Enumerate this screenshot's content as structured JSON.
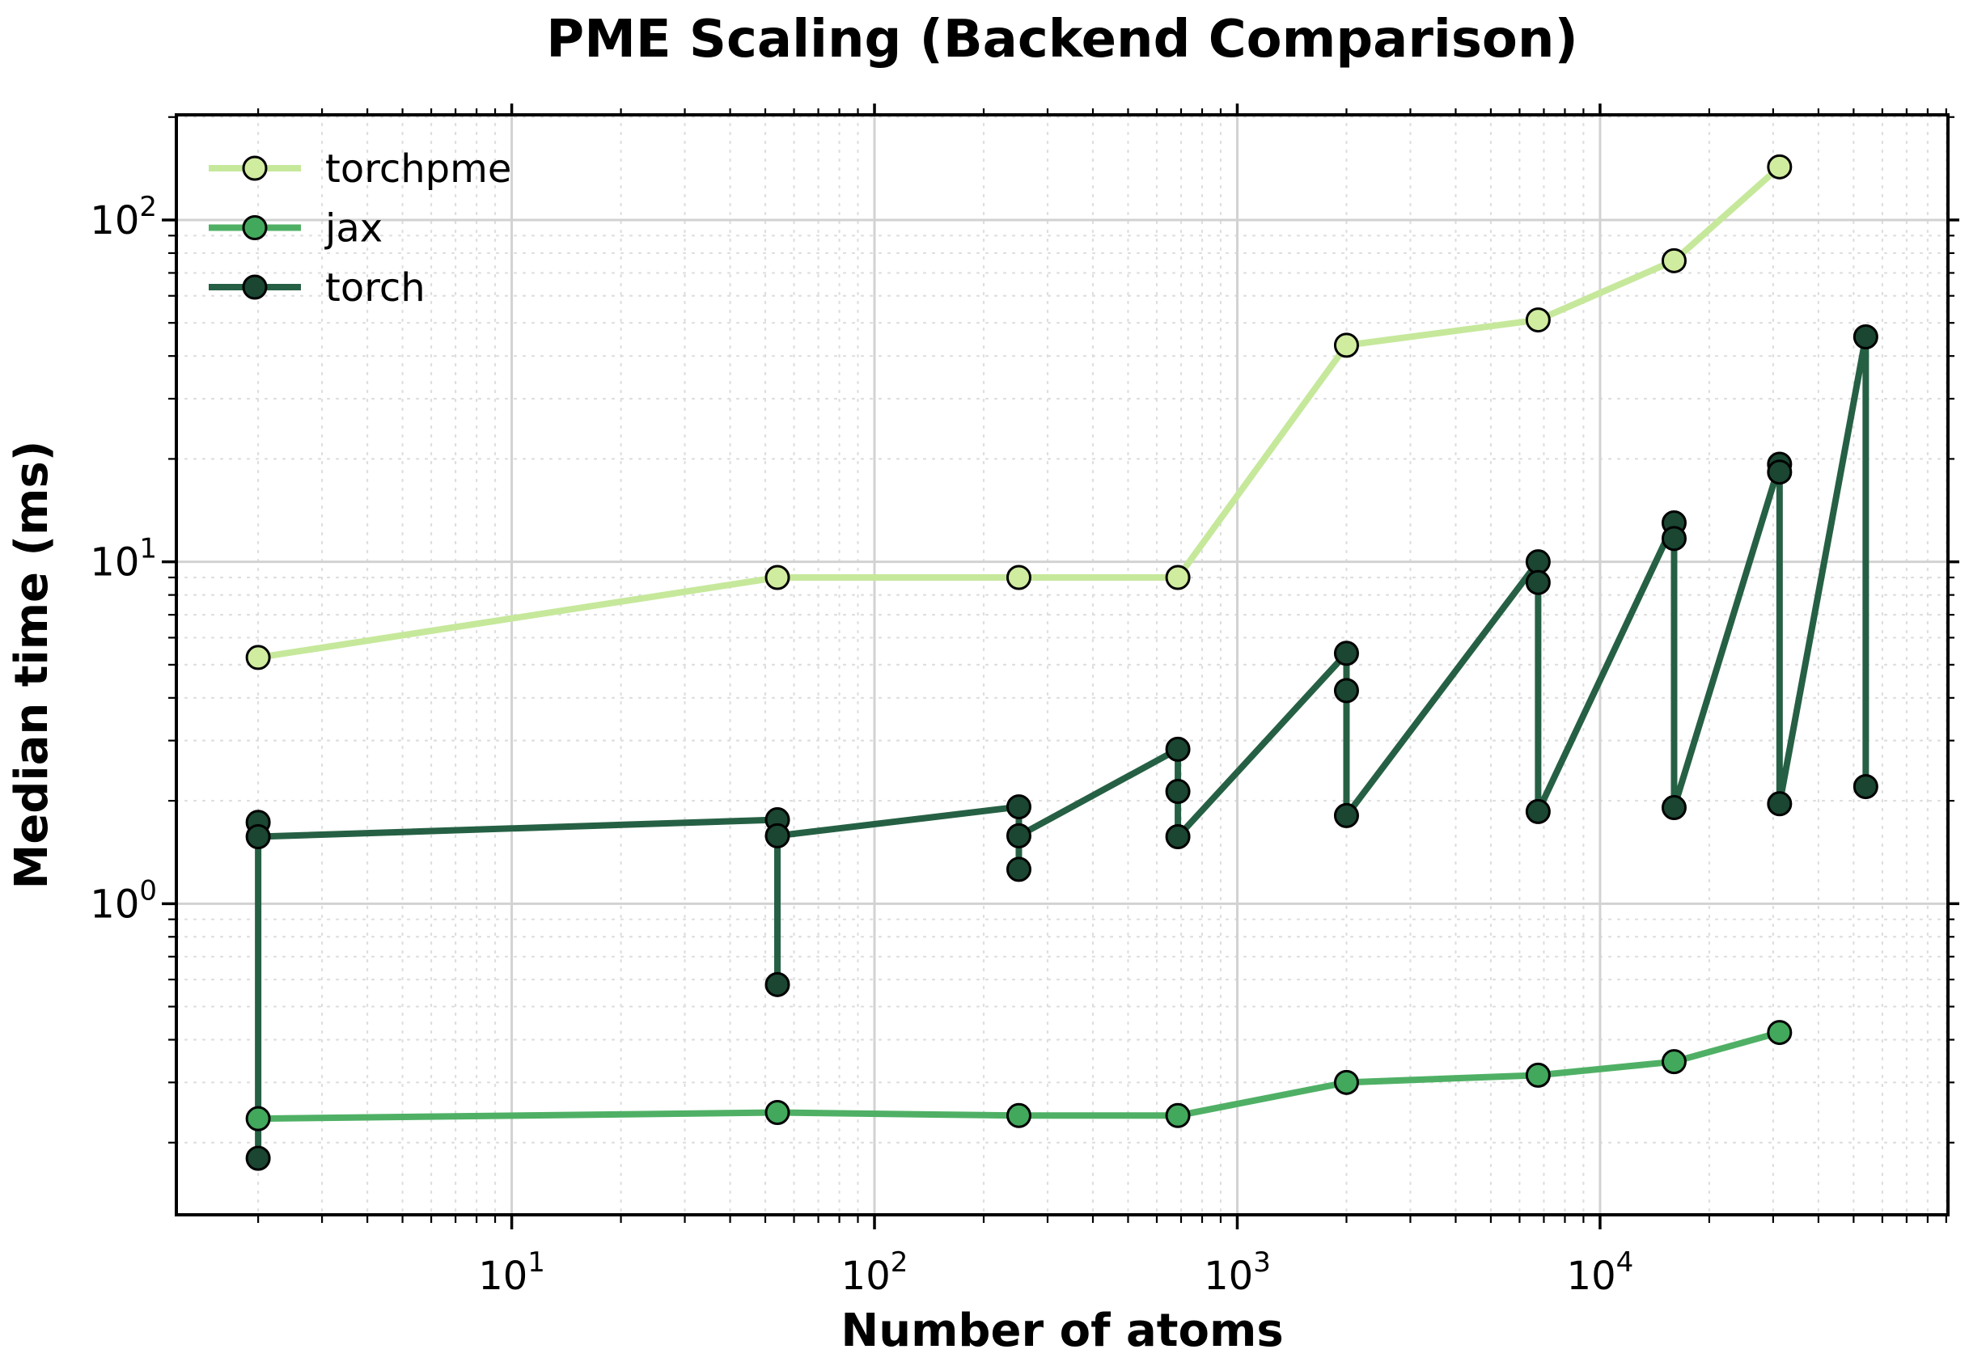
{
  "chart_data": {
    "type": "line",
    "title": "PME Scaling (Backend Comparison)",
    "xlabel": "Number of atoms",
    "ylabel": "Median time (ms)",
    "x_scale": "log",
    "y_scale": "log",
    "xlim": [
      1.19,
      91000
    ],
    "ylim": [
      0.123,
      203
    ],
    "x_major_ticks": [
      10,
      100,
      1000,
      10000
    ],
    "y_major_ticks": [
      1,
      10,
      100
    ],
    "grid": true,
    "legend_position": "upper left",
    "background_color": "#ffffff",
    "major_grid_color": "#d2d2d2",
    "minor_grid_color": "#dedede",
    "spine_color": "#000000",
    "series": [
      {
        "name": "torchpme",
        "color": "#c6e89b",
        "marker_face": "#d0ec9f",
        "marker_edge": "#000000",
        "points": [
          [
            2,
            5.25
          ],
          [
            54,
            9.0
          ],
          [
            250,
            9.0
          ],
          [
            686,
            9.0
          ],
          [
            2000,
            43
          ],
          [
            6750,
            51
          ],
          [
            16000,
            76
          ],
          [
            31250,
            143
          ]
        ]
      },
      {
        "name": "jax",
        "color": "#4fb065",
        "marker_face": "#42a85c",
        "marker_edge": "#000000",
        "points": [
          [
            2,
            0.235
          ],
          [
            54,
            0.245
          ],
          [
            250,
            0.24
          ],
          [
            686,
            0.24
          ],
          [
            2000,
            0.3
          ],
          [
            6750,
            0.315
          ],
          [
            16000,
            0.345
          ],
          [
            31250,
            0.42
          ]
        ]
      },
      {
        "name": "torch",
        "color": "#266044",
        "marker_face": "#1a4632",
        "marker_edge": "#000000",
        "points": [
          [
            2,
            1.73
          ],
          [
            2,
            0.18
          ],
          [
            2,
            1.57
          ],
          [
            54,
            1.76
          ],
          [
            54,
            0.58
          ],
          [
            54,
            1.58
          ],
          [
            250,
            1.92
          ],
          [
            250,
            1.26
          ],
          [
            250,
            1.58
          ],
          [
            686,
            2.83
          ],
          [
            686,
            2.13
          ],
          [
            686,
            1.57
          ],
          [
            2000,
            5.4
          ],
          [
            2000,
            4.2
          ],
          [
            2000,
            1.81
          ],
          [
            6750,
            10.0
          ],
          [
            6750,
            8.7
          ],
          [
            6750,
            1.86
          ],
          [
            16000,
            13.0
          ],
          [
            16000,
            11.7
          ],
          [
            16000,
            1.91
          ],
          [
            31250,
            19.3
          ],
          [
            31250,
            18.3
          ],
          [
            31250,
            1.96
          ],
          [
            54000,
            45.5
          ],
          [
            54000,
            2.2
          ]
        ]
      }
    ]
  }
}
